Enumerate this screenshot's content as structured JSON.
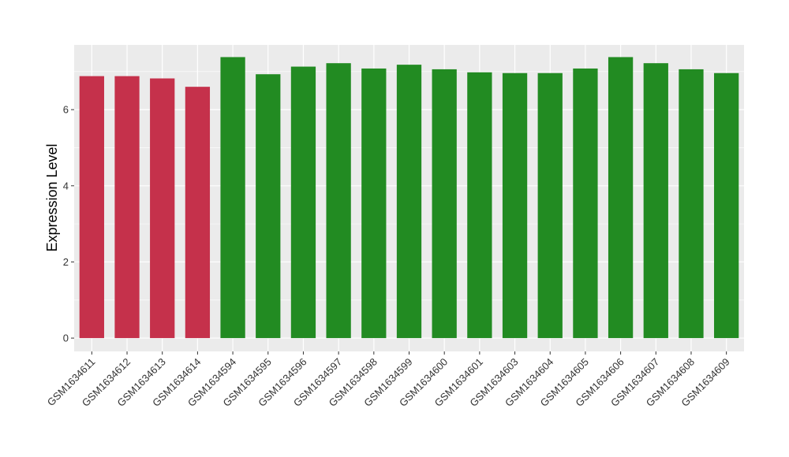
{
  "chart_data": {
    "type": "bar",
    "title": "",
    "xlabel": "",
    "ylabel": "Expression Level",
    "ylim": [
      -0.35,
      7.7
    ],
    "yticks": [
      0,
      2,
      4,
      6
    ],
    "grid": true,
    "legend": "none",
    "categories": [
      "GSM1634611",
      "GSM1634612",
      "GSM1634613",
      "GSM1634614",
      "GSM1634594",
      "GSM1634595",
      "GSM1634596",
      "GSM1634597",
      "GSM1634598",
      "GSM1634599",
      "GSM1634600",
      "GSM1634601",
      "GSM1634603",
      "GSM1634604",
      "GSM1634605",
      "GSM1634606",
      "GSM1634607",
      "GSM1634608",
      "GSM1634609"
    ],
    "values": [
      6.88,
      6.88,
      6.82,
      6.6,
      7.38,
      6.93,
      7.13,
      7.22,
      7.08,
      7.18,
      7.06,
      6.98,
      6.96,
      6.96,
      7.08,
      7.38,
      7.22,
      7.06,
      6.96
    ],
    "groups": [
      "g1",
      "g1",
      "g1",
      "g1",
      "g2",
      "g2",
      "g2",
      "g2",
      "g2",
      "g2",
      "g2",
      "g2",
      "g2",
      "g2",
      "g2",
      "g2",
      "g2",
      "g2",
      "g2"
    ],
    "colors": {
      "g1": "#C5314B",
      "g2": "#228B22",
      "panel": "#EBEBEB",
      "grid": "#FFFFFF"
    }
  }
}
